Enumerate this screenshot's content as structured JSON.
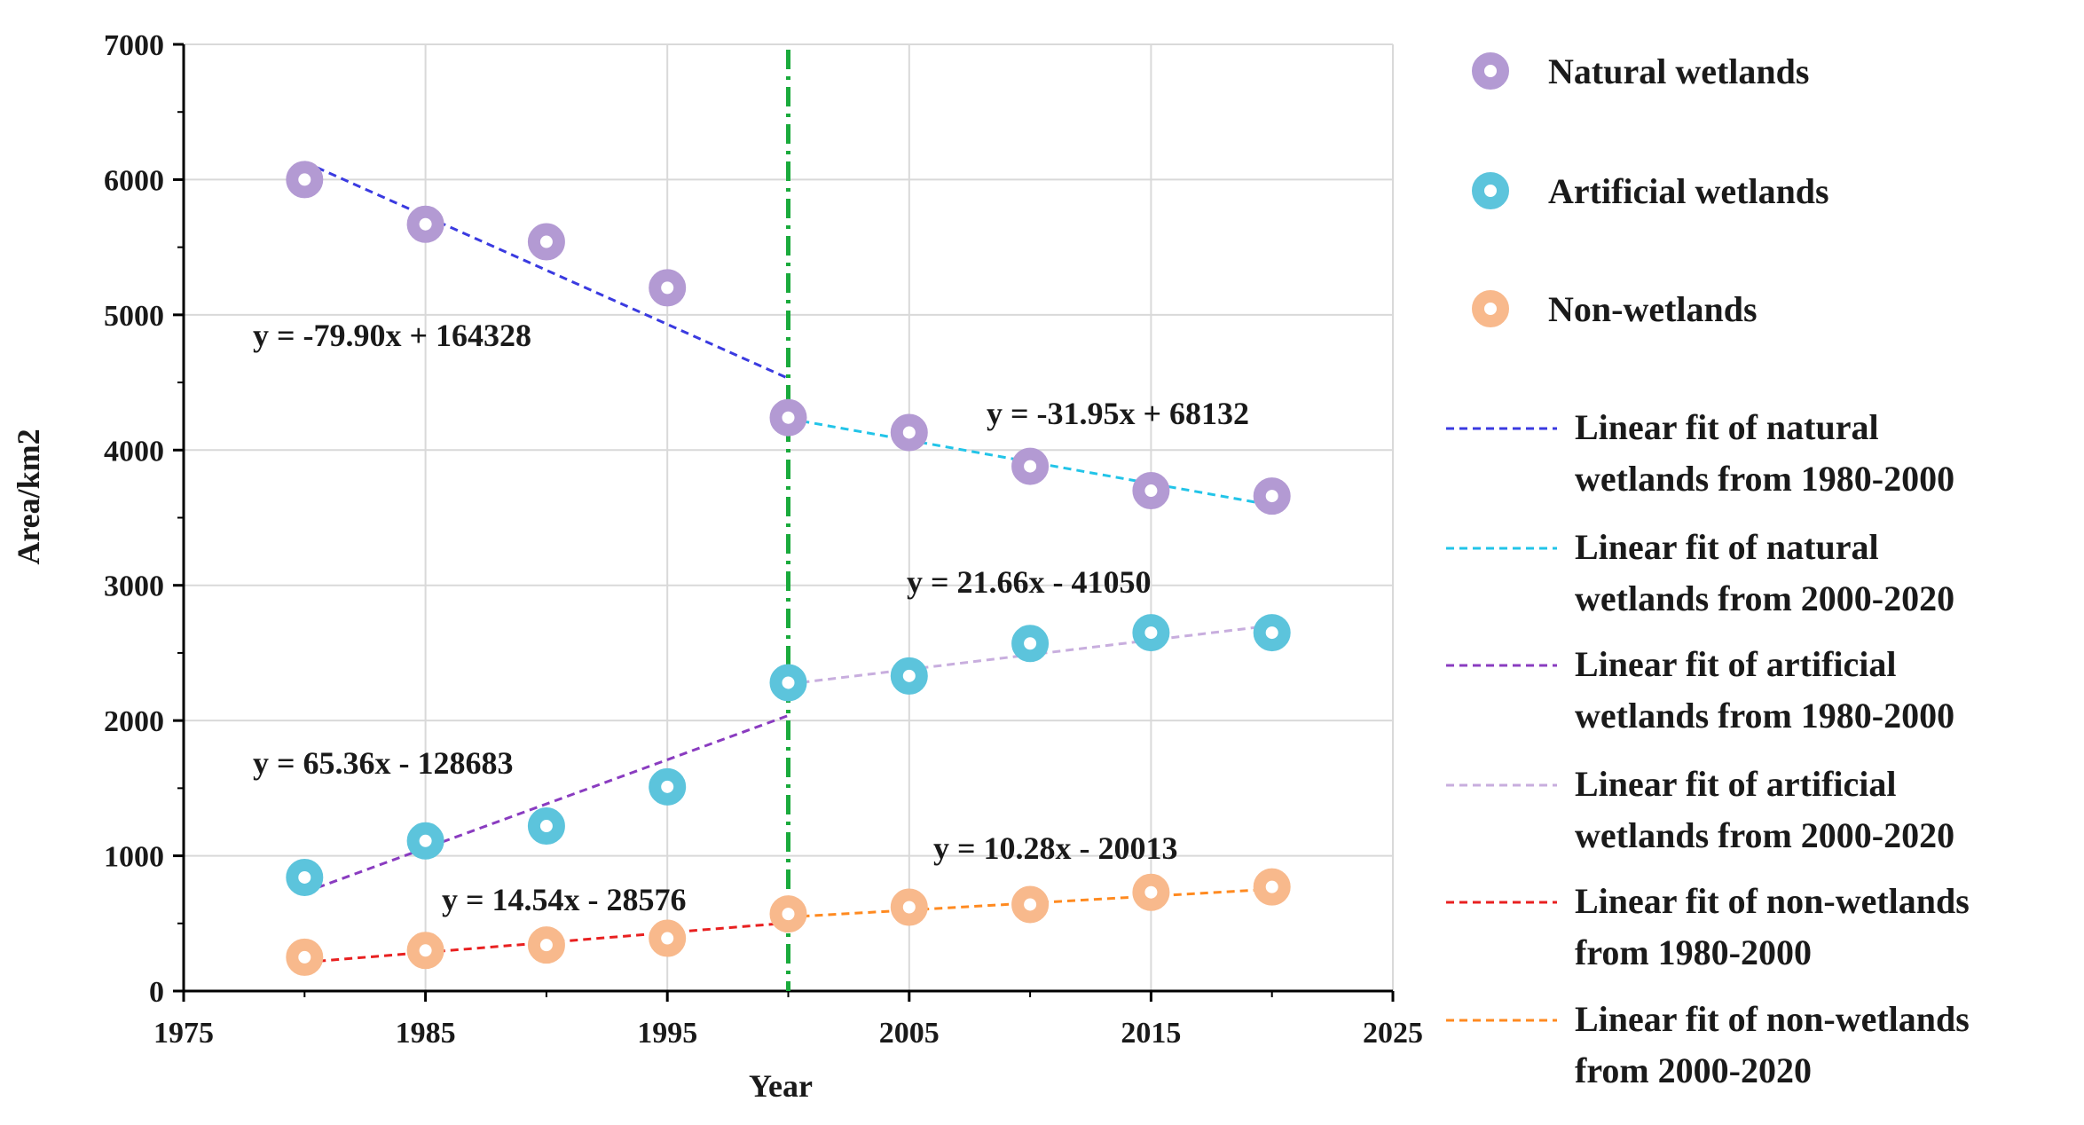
{
  "chart_data": {
    "type": "scatter",
    "title": "",
    "xlabel": "Year",
    "ylabel": "Area/km2",
    "xlim": [
      1975,
      2025
    ],
    "ylim": [
      0,
      7000
    ],
    "xticks": [
      "1975",
      "1985",
      "1995",
      "2005",
      "2015",
      "2025"
    ],
    "yticks": [
      "0",
      "1000",
      "2000",
      "3000",
      "4000",
      "5000",
      "6000",
      "7000"
    ],
    "grid": true,
    "divider_x": 2000,
    "series": [
      {
        "name": "Natural wetlands",
        "color": "#b39ad3",
        "x": [
          1980,
          1985,
          1990,
          1995,
          2000,
          2005,
          2010,
          2015,
          2020
        ],
        "y": [
          6000,
          5670,
          5540,
          5200,
          4240,
          4130,
          3880,
          3700,
          3660
        ]
      },
      {
        "name": "Artificial wetlands",
        "color": "#5cc4dc",
        "x": [
          1980,
          1985,
          1990,
          1995,
          2000,
          2005,
          2010,
          2015,
          2020
        ],
        "y": [
          840,
          1110,
          1220,
          1510,
          2280,
          2330,
          2570,
          2650,
          2650
        ]
      },
      {
        "name": "Non-wetlands",
        "color": "#f8b98c",
        "x": [
          1980,
          1985,
          1990,
          1995,
          2000,
          2005,
          2010,
          2015,
          2020
        ],
        "y": [
          250,
          300,
          340,
          390,
          570,
          620,
          640,
          730,
          770
        ]
      }
    ],
    "fits": [
      {
        "label_lines": [
          "Linear fit of natural",
          "wetlands from 1980-2000"
        ],
        "color": "#3a3ae0",
        "x": [
          1980,
          2000
        ],
        "y": [
          6130,
          4530
        ],
        "equation": "y = -79.90x + 164328"
      },
      {
        "label_lines": [
          "Linear fit of natural",
          "wetlands from 2000-2020"
        ],
        "color": "#22c4e8",
        "x": [
          2000,
          2020
        ],
        "y": [
          4232,
          3593
        ],
        "equation": "y = -31.95x + 68132"
      },
      {
        "label_lines": [
          "Linear fit of artificial",
          "wetlands from 1980-2000"
        ],
        "color": "#8a3cc0",
        "x": [
          1980,
          2000
        ],
        "y": [
          730,
          2037
        ],
        "equation": "y = 65.36x - 128683"
      },
      {
        "label_lines": [
          "Linear fit of artificial",
          "wetlands from 2000-2020"
        ],
        "color": "#c8aede",
        "x": [
          2000,
          2020
        ],
        "y": [
          2270,
          2703
        ],
        "equation": "y = 21.66x - 41050"
      },
      {
        "label_lines": [
          "Linear fit of non-wetlands",
          "from 1980-2000"
        ],
        "color": "#e82020",
        "x": [
          1980,
          2000
        ],
        "y": [
          213,
          504
        ],
        "equation": "y = 14.54x - 28576"
      },
      {
        "label_lines": [
          "Linear fit of non-wetlands",
          "from 2000-2020"
        ],
        "color": "#ff8a20",
        "x": [
          2000,
          2020
        ],
        "y": [
          547,
          753
        ],
        "equation": "y = 10.28x - 20013"
      }
    ],
    "divider_color": "#1aaa3c"
  }
}
